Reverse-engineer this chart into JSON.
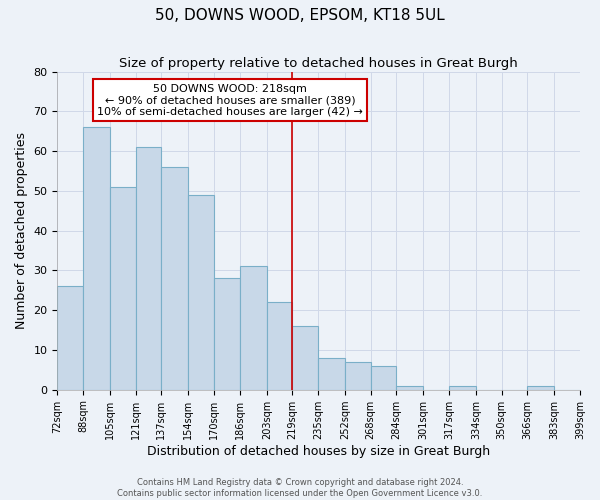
{
  "title": "50, DOWNS WOOD, EPSOM, KT18 5UL",
  "subtitle": "Size of property relative to detached houses in Great Burgh",
  "xlabel": "Distribution of detached houses by size in Great Burgh",
  "ylabel": "Number of detached properties",
  "bins": [
    72,
    88,
    105,
    121,
    137,
    154,
    170,
    186,
    203,
    219,
    235,
    252,
    268,
    284,
    301,
    317,
    334,
    350,
    366,
    383,
    399
  ],
  "counts": [
    26,
    66,
    51,
    61,
    56,
    49,
    28,
    31,
    22,
    16,
    8,
    7,
    6,
    1,
    0,
    1,
    0,
    0,
    1,
    0
  ],
  "bar_facecolor": "#c8d8e8",
  "bar_edgecolor": "#7aafc8",
  "bar_linewidth": 0.8,
  "vline_x": 219,
  "vline_color": "#cc0000",
  "vline_linewidth": 1.2,
  "annotation_title": "50 DOWNS WOOD: 218sqm",
  "annotation_line1": "← 90% of detached houses are smaller (389)",
  "annotation_line2": "10% of semi-detached houses are larger (42) →",
  "annotation_box_color": "#cc0000",
  "annotation_bg": "#ffffff",
  "ylim": [
    0,
    80
  ],
  "yticks": [
    0,
    10,
    20,
    30,
    40,
    50,
    60,
    70,
    80
  ],
  "grid_color": "#d0d8e8",
  "background_color": "#edf2f8",
  "footer1": "Contains HM Land Registry data © Crown copyright and database right 2024.",
  "footer2": "Contains public sector information licensed under the Open Government Licence v3.0.",
  "title_fontsize": 11,
  "subtitle_fontsize": 9.5,
  "xlabel_fontsize": 9,
  "ylabel_fontsize": 9,
  "tick_fontsize": 7,
  "ytick_fontsize": 8,
  "footer_fontsize": 6,
  "annotation_fontsize": 8
}
